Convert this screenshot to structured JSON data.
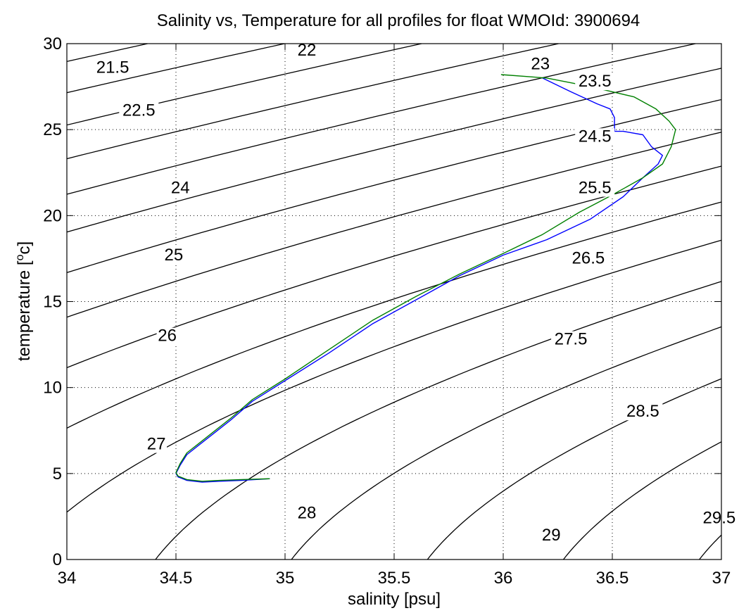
{
  "chart_data": {
    "type": "line",
    "title": "Salinity vs, Temperature for all profiles for float WMOId: 3900694",
    "xlabel": "salinity [psu]",
    "ylabel_main": "temperature [",
    "ylabel_sup": "o",
    "ylabel_tail": "c]",
    "xlim": [
      34,
      37
    ],
    "ylim": [
      0,
      30
    ],
    "xticks": [
      34,
      34.5,
      35,
      35.5,
      36,
      36.5,
      37
    ],
    "xtick_labels": [
      "34",
      "34.5",
      "35",
      "35.5",
      "36",
      "36.5",
      "37"
    ],
    "yticks": [
      0,
      5,
      10,
      15,
      20,
      25,
      30
    ],
    "ytick_labels": [
      "0",
      "5",
      "10",
      "15",
      "20",
      "25",
      "30"
    ],
    "grid": true,
    "colors": {
      "series_1": "#0000ff",
      "series_2": "#008000",
      "contours": "#000000"
    },
    "density_contours": {
      "levels": [
        21.5,
        22,
        22.5,
        23,
        23.5,
        24,
        24.5,
        25,
        25.5,
        26,
        26.5,
        27,
        27.5,
        28,
        28.5,
        29,
        29.5
      ],
      "labels": [
        {
          "text": "21.5",
          "s": 34.21,
          "t": 28.3
        },
        {
          "text": "22",
          "s": 35.1,
          "t": 29.3
        },
        {
          "text": "22.5",
          "s": 34.33,
          "t": 25.8
        },
        {
          "text": "23",
          "s": 36.17,
          "t": 28.5
        },
        {
          "text": "23.5",
          "s": 36.42,
          "t": 27.5
        },
        {
          "text": "24",
          "s": 34.52,
          "t": 21.3
        },
        {
          "text": "24.5",
          "s": 36.42,
          "t": 24.3
        },
        {
          "text": "25",
          "s": 34.49,
          "t": 17.4
        },
        {
          "text": "25.5",
          "s": 36.42,
          "t": 21.3
        },
        {
          "text": "26",
          "s": 34.46,
          "t": 12.7
        },
        {
          "text": "26.5",
          "s": 36.39,
          "t": 17.2
        },
        {
          "text": "27",
          "s": 34.41,
          "t": 6.4
        },
        {
          "text": "27.5",
          "s": 36.31,
          "t": 12.5
        },
        {
          "text": "28",
          "s": 35.1,
          "t": 2.4
        },
        {
          "text": "28.5",
          "s": 36.64,
          "t": 8.3
        },
        {
          "text": "29",
          "s": 36.22,
          "t": 1.1
        },
        {
          "text": "29.5",
          "s": 36.99,
          "t": 2.1
        }
      ]
    },
    "series": [
      {
        "x": [
          36.18,
          36.31,
          36.43,
          36.49,
          36.51,
          36.51,
          36.55,
          36.64,
          36.68,
          36.73,
          36.71,
          36.64,
          36.55,
          36.4,
          36.2,
          36.0,
          35.8,
          35.6,
          35.4,
          35.2,
          35.0,
          34.85,
          34.75,
          34.66,
          34.6,
          34.55,
          34.52,
          34.5,
          34.51,
          34.55,
          34.62,
          34.7,
          34.8,
          34.93
        ],
        "y": [
          28.0,
          27.2,
          26.5,
          26.2,
          25.7,
          24.9,
          24.9,
          24.7,
          24.0,
          23.5,
          23.0,
          22.2,
          21.1,
          19.8,
          18.6,
          17.7,
          16.5,
          15.1,
          13.7,
          12.0,
          10.4,
          9.2,
          8.1,
          7.2,
          6.6,
          6.1,
          5.5,
          5.0,
          4.8,
          4.6,
          4.5,
          4.55,
          4.6,
          4.7
        ]
      },
      {
        "x": [
          35.99,
          36.2,
          36.4,
          36.6,
          36.7,
          36.76,
          36.79,
          36.77,
          36.73,
          36.64,
          36.5,
          36.35,
          36.18,
          36.0,
          35.8,
          35.6,
          35.4,
          35.2,
          35.0,
          34.85,
          34.75,
          34.66,
          34.6,
          34.55,
          34.52,
          34.5,
          34.51,
          34.55,
          34.62,
          34.7,
          34.8,
          34.93
        ],
        "y": [
          28.2,
          28.0,
          27.5,
          26.9,
          26.2,
          25.5,
          25.0,
          24.0,
          23.0,
          22.2,
          21.2,
          20.2,
          18.9,
          17.8,
          16.6,
          15.3,
          13.9,
          12.2,
          10.5,
          9.3,
          8.2,
          7.3,
          6.7,
          6.2,
          5.6,
          5.05,
          4.85,
          4.65,
          4.55,
          4.6,
          4.65,
          4.7
        ]
      }
    ]
  }
}
